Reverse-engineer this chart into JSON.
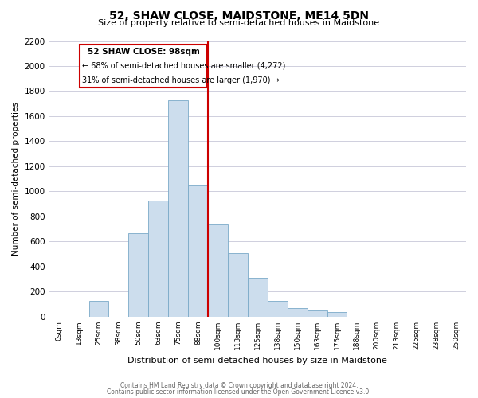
{
  "title": "52, SHAW CLOSE, MAIDSTONE, ME14 5DN",
  "subtitle": "Size of property relative to semi-detached houses in Maidstone",
  "xlabel": "Distribution of semi-detached houses by size in Maidstone",
  "ylabel": "Number of semi-detached properties",
  "footer_line1": "Contains HM Land Registry data © Crown copyright and database right 2024.",
  "footer_line2": "Contains public sector information licensed under the Open Government Licence v3.0.",
  "bar_labels": [
    "0sqm",
    "13sqm",
    "25sqm",
    "38sqm",
    "50sqm",
    "63sqm",
    "75sqm",
    "88sqm",
    "100sqm",
    "113sqm",
    "125sqm",
    "138sqm",
    "150sqm",
    "163sqm",
    "175sqm",
    "188sqm",
    "200sqm",
    "213sqm",
    "225sqm",
    "238sqm",
    "250sqm"
  ],
  "bar_values": [
    2,
    2,
    125,
    2,
    665,
    925,
    1725,
    1050,
    735,
    505,
    310,
    125,
    70,
    50,
    35,
    2,
    2,
    2,
    2,
    2,
    2
  ],
  "bar_color": "#ccdded",
  "bar_edge_color": "#7aaac8",
  "marker_label": "52 SHAW CLOSE: 98sqm",
  "smaller_pct": "68%",
  "smaller_n": "4,272",
  "larger_pct": "31%",
  "larger_n": "1,970",
  "ylim": [
    0,
    2200
  ],
  "yticks": [
    0,
    200,
    400,
    600,
    800,
    1000,
    1200,
    1400,
    1600,
    1800,
    2000,
    2200
  ],
  "annotation_box_color": "#ffffff",
  "annotation_box_edge": "#cc0000",
  "marker_line_color": "#cc0000",
  "background_color": "#ffffff",
  "grid_color": "#c8c8d8"
}
